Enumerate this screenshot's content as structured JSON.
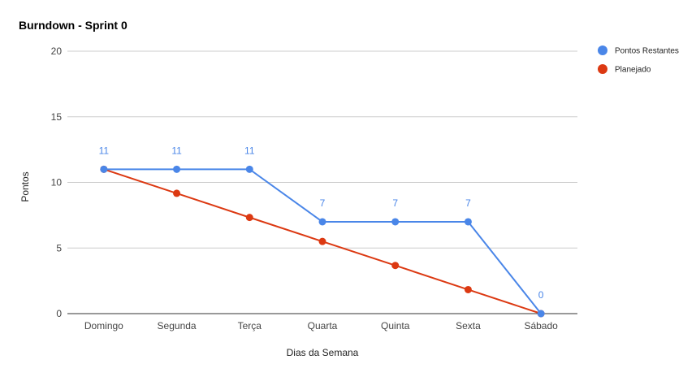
{
  "chart_data": {
    "type": "line",
    "title": "Burndown - Sprint 0",
    "xlabel": "Dias da Semana",
    "ylabel": "Pontos",
    "categories": [
      "Domingo",
      "Segunda",
      "Terça",
      "Quarta",
      "Quinta",
      "Sexta",
      "Sábado"
    ],
    "ylim": [
      0,
      20
    ],
    "yticks": [
      0,
      5,
      10,
      15,
      20
    ],
    "grid": true,
    "legend_position": "right-top",
    "series": [
      {
        "name": "Pontos Restantes",
        "color": "#4a86e8",
        "values": [
          11,
          11,
          11,
          7,
          7,
          7,
          0
        ],
        "data_labels": [
          "11",
          "11",
          "11",
          "7",
          "7",
          "7",
          "0"
        ]
      },
      {
        "name": "Planejado",
        "color": "#dc3912",
        "values": [
          11,
          9.17,
          7.33,
          5.5,
          3.67,
          1.83,
          0
        ]
      }
    ]
  }
}
